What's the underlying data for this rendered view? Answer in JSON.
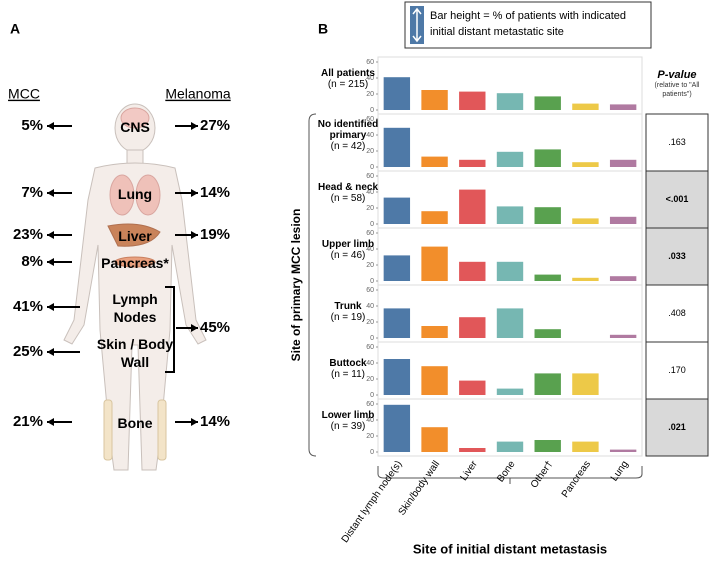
{
  "panel_a": {
    "label": "A",
    "left_header": "MCC",
    "right_header": "Melanoma",
    "rows": [
      {
        "organ": "CNS",
        "mcc": "5%",
        "melanoma": "27%"
      },
      {
        "organ": "Lung",
        "mcc": "7%",
        "melanoma": "14%"
      },
      {
        "organ": "Liver",
        "mcc": "23%",
        "melanoma": "19%"
      },
      {
        "organ": "Pancreas*",
        "mcc": "8%"
      },
      {
        "organ": "Lymph Nodes",
        "mcc": "41%"
      },
      {
        "organ": "Skin / Body Wall",
        "mcc": "25%"
      },
      {
        "organ": "Bone",
        "mcc": "21%",
        "melanoma": "14%"
      }
    ],
    "bracket_melanoma": "45%"
  },
  "chart_data": {
    "type": "bar",
    "panel_label": "B",
    "legend": "Bar height = % of patients with indicated initial distant metastatic site",
    "ylabel": "Site of primary MCC lesion",
    "xlabel": "Site of initial distant metastasis",
    "pvalue_header": "P-value",
    "pvalue_note": "(relative to \"All patients\")",
    "categories": [
      "Distant lymph node(s)",
      "Skin/body wall",
      "Liver",
      "Bone",
      "Other†",
      "Pancreas",
      "Lung"
    ],
    "colors": [
      "#4e79a7",
      "#f28e2b",
      "#e15759",
      "#76b7b2",
      "#59a14f",
      "#edc948",
      "#b07aa1"
    ],
    "ylim": [
      0,
      60
    ],
    "yticks": [
      0,
      20,
      40,
      60
    ],
    "panels": [
      {
        "name": "All patients",
        "n": "(n = 215)",
        "values": [
          41,
          25,
          23,
          21,
          17,
          8,
          7
        ]
      },
      {
        "name": "No identified primary",
        "n": "(n = 42)",
        "values": [
          49,
          13,
          9,
          19,
          22,
          6,
          9
        ],
        "p_value": ".163",
        "significant": false
      },
      {
        "name": "Head & neck",
        "n": "(n = 58)",
        "values": [
          33,
          16,
          43,
          22,
          21,
          7,
          9
        ],
        "p_value": "<.001",
        "significant": true
      },
      {
        "name": "Upper limb",
        "n": "(n = 46)",
        "values": [
          32,
          43,
          24,
          24,
          8,
          4,
          6
        ],
        "p_value": ".033",
        "significant": true
      },
      {
        "name": "Trunk",
        "n": "(n = 19)",
        "values": [
          37,
          15,
          26,
          37,
          11,
          0,
          4
        ],
        "p_value": ".408",
        "significant": false
      },
      {
        "name": "Buttock",
        "n": "(n = 11)",
        "values": [
          45,
          36,
          18,
          8,
          27,
          27,
          0
        ],
        "p_value": ".170",
        "significant": false
      },
      {
        "name": "Lower limb",
        "n": "(n = 39)",
        "values": [
          59,
          31,
          5,
          13,
          15,
          13,
          3
        ],
        "p_value": ".021",
        "significant": true
      }
    ]
  }
}
